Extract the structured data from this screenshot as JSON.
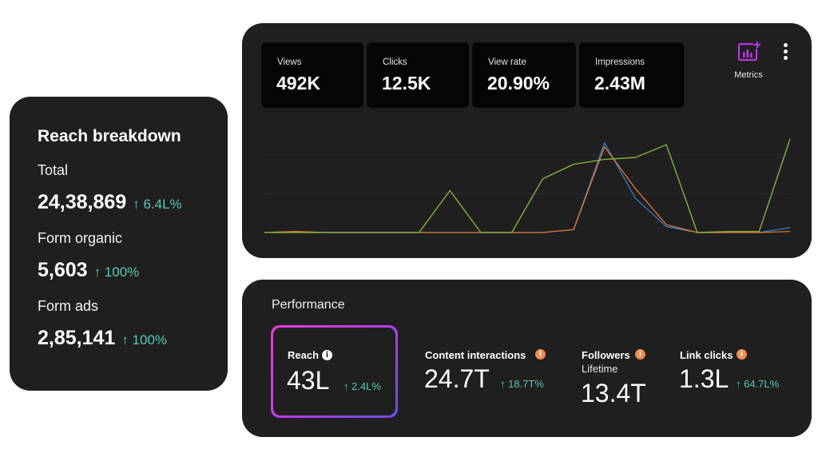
{
  "reach_breakdown": {
    "title": "Reach breakdown",
    "items": [
      {
        "label": "Total",
        "value": "24,38,869",
        "change": "↑ 6.4L%"
      },
      {
        "label": "Form organic",
        "value": "5,603",
        "change": "↑ 100%"
      },
      {
        "label": "Form ads",
        "value": "2,85,141",
        "change": "↑ 100%"
      }
    ]
  },
  "stats": [
    {
      "label": "Views",
      "value": "492K"
    },
    {
      "label": "Clicks",
      "value": "12.5K"
    },
    {
      "label": "View rate",
      "value": "20.90%"
    },
    {
      "label": "Impressions",
      "value": "2.43M"
    }
  ],
  "toolbar": {
    "metrics_label": "Metrics",
    "metrics_icon": "chart-add-icon",
    "more_icon": "more-vertical-icon"
  },
  "chart_data": {
    "type": "line",
    "grid": true,
    "legend": "none",
    "ylim": [
      0,
      100
    ],
    "x": [
      0,
      1,
      2,
      3,
      4,
      5,
      6,
      7,
      8,
      9,
      10,
      11,
      12,
      13,
      14,
      15,
      16,
      17
    ],
    "series": [
      {
        "color": "#2f7fd0",
        "values": [
          0,
          1,
          0,
          0,
          0,
          0,
          0,
          0,
          0,
          0,
          3,
          92,
          35,
          6,
          0,
          0,
          0,
          5
        ]
      },
      {
        "color": "#e8762c",
        "values": [
          0,
          1,
          0,
          0,
          0,
          0,
          0,
          0,
          0,
          0,
          3,
          88,
          45,
          8,
          0,
          0,
          0,
          1
        ]
      },
      {
        "color": "#8fbb3a",
        "values": [
          0,
          0,
          0,
          0,
          0,
          0,
          43,
          0,
          0,
          55,
          70,
          75,
          77,
          90,
          0,
          1,
          1,
          96
        ]
      }
    ]
  },
  "performance": {
    "title": "Performance",
    "reach": {
      "label": "Reach",
      "value": "43L",
      "change": "↑ 2.4L%"
    },
    "content_interactions": {
      "label": "Content interactions",
      "value": "24.7T",
      "change": "↑ 18.7T%"
    },
    "followers": {
      "label": "Followers",
      "sub": "Lifetime",
      "value": "13.4T"
    },
    "link_clicks": {
      "label": "Link clicks",
      "value": "1.3L",
      "change": "↑ 64.7L%"
    },
    "info_glyph": "i",
    "accent_gradient": [
      "#e83bd6",
      "#6a4de6"
    ],
    "info_color": "#f28b4c",
    "change_color": "#56c9b5"
  }
}
